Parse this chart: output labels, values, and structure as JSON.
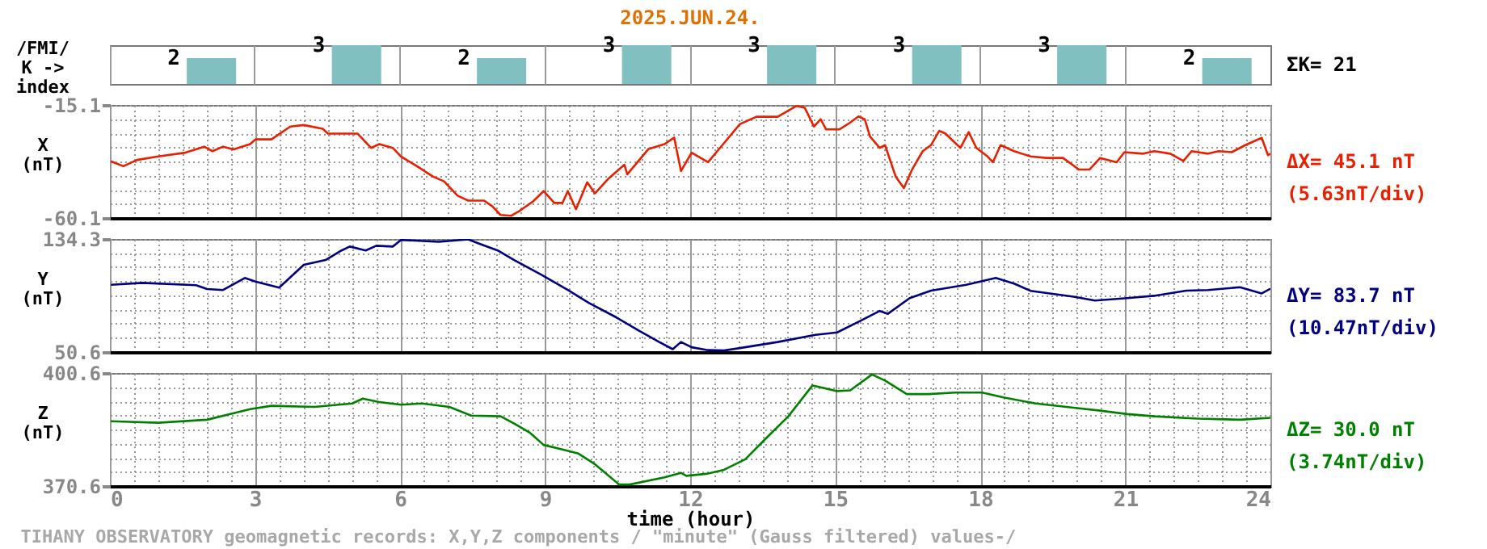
{
  "chart_data": [
    {
      "type": "bar",
      "title": "2025.JUN.24.",
      "ylabel": "/FMI/\nK ->\nindex",
      "categories": [
        null,
        null,
        null,
        null,
        null,
        null,
        null,
        null
      ],
      "values": [
        2,
        3,
        2,
        3,
        3,
        3,
        3,
        2
      ],
      "color": "#80c0c0",
      "data_labels": true,
      "grid": "x",
      "tick_labels": false,
      "annotations": [
        "ΣK= 21"
      ]
    },
    {
      "type": "line",
      "ylabel": "X\n(nT)",
      "xlim": [
        0,
        24
      ],
      "ylim": [
        -60.1,
        -15.1
      ],
      "yticks": [
        -15.1,
        {
          "value": -20.74,
          "label": null
        },
        {
          "value": -26.38,
          "label": null
        },
        {
          "value": -32.01,
          "label": null
        },
        {
          "value": -37.65,
          "label": null
        },
        {
          "value": -43.29,
          "label": null
        },
        {
          "value": -48.92,
          "label": null
        },
        {
          "value": -54.56,
          "label": null
        },
        -60.1
      ],
      "xticks": [
        0,
        {
          "value": 0.5,
          "label": null
        },
        {
          "value": 1,
          "label": null
        },
        {
          "value": 1.5,
          "label": null
        },
        {
          "value": 2,
          "label": null
        },
        {
          "value": 2.5,
          "label": null
        },
        3,
        {
          "value": 3.5,
          "label": null
        },
        {
          "value": 4,
          "label": null
        },
        {
          "value": 4.5,
          "label": null
        },
        {
          "value": 5,
          "label": null
        },
        {
          "value": 5.5,
          "label": null
        },
        6,
        {
          "value": 6.5,
          "label": null
        },
        {
          "value": 7,
          "label": null
        },
        {
          "value": 7.5,
          "label": null
        },
        {
          "value": 8,
          "label": null
        },
        {
          "value": 8.5,
          "label": null
        },
        9,
        {
          "value": 9.5,
          "label": null
        },
        {
          "value": 10,
          "label": null
        },
        {
          "value": 10.5,
          "label": null
        },
        {
          "value": 11,
          "label": null
        },
        {
          "value": 11.5,
          "label": null
        },
        12,
        {
          "value": 12.5,
          "label": null
        },
        {
          "value": 13,
          "label": null
        },
        {
          "value": 13.5,
          "label": null
        },
        {
          "value": 14,
          "label": null
        },
        {
          "value": 14.5,
          "label": null
        },
        15,
        {
          "value": 15.5,
          "label": null
        },
        {
          "value": 16,
          "label": null
        },
        {
          "value": 16.5,
          "label": null
        },
        {
          "value": 17,
          "label": null
        },
        {
          "value": 17.5,
          "label": null
        },
        18,
        {
          "value": 18.5,
          "label": null
        },
        {
          "value": 19,
          "label": null
        },
        {
          "value": 19.5,
          "label": null
        },
        {
          "value": 20,
          "label": null
        },
        {
          "value": 20.5,
          "label": null
        },
        21,
        {
          "value": 21.5,
          "label": null
        },
        {
          "value": 22,
          "label": null
        },
        {
          "value": 22.5,
          "label": null
        },
        {
          "value": 23,
          "label": null
        },
        {
          "value": 23.5,
          "label": null
        },
        24
      ],
      "grid": true,
      "tick_labels": "y",
      "annotations": [
        "ΔX= 45.1 nT",
        "(5.63nT/div)"
      ],
      "series": [
        {
          "color": "#e82000",
          "x": [
            0.02,
            0.28,
            0.56,
            1.0,
            1.56,
            1.95,
            2.12,
            2.34,
            2.56,
            2.9,
            3.01,
            3.34,
            3.73,
            4.01,
            4.4,
            4.51,
            5.12,
            5.4,
            5.57,
            5.85,
            6.02,
            6.35,
            6.68,
            6.91,
            7.19,
            7.41,
            7.74,
            7.91,
            8.08,
            8.3,
            8.47,
            8.75,
            8.97,
            9.19,
            9.36,
            9.47,
            9.64,
            9.87,
            10.03,
            10.3,
            10.64,
            10.7,
            11.14,
            11.47,
            11.67,
            11.81,
            12.03,
            12.37,
            12.7,
            13.03,
            13.37,
            13.81,
            14.2,
            14.37,
            14.56,
            14.7,
            14.81,
            15.09,
            15.28,
            15.48,
            15.61,
            15.72,
            15.92,
            16.03,
            16.25,
            16.42,
            16.59,
            16.81,
            16.98,
            17.15,
            17.28,
            17.59,
            17.76,
            17.92,
            18.15,
            18.26,
            18.42,
            18.7,
            19.04,
            19.37,
            19.71,
            20.04,
            20.26,
            20.48,
            20.82,
            20.98,
            21.37,
            21.6,
            21.93,
            22.2,
            22.37,
            22.71,
            22.93,
            23.2,
            23.48,
            23.82,
            23.95,
            24.0
          ],
          "values": [
            -37.5,
            -39.5,
            -37.0,
            -35.6,
            -34.1,
            -31.7,
            -33.5,
            -31.7,
            -32.8,
            -30.7,
            -28.8,
            -28.8,
            -23.7,
            -23.1,
            -24.6,
            -26.5,
            -26.5,
            -32.2,
            -30.7,
            -32.2,
            -35.6,
            -39.5,
            -43.6,
            -45.5,
            -51.2,
            -53.2,
            -53.2,
            -55.5,
            -58.9,
            -59.2,
            -57.3,
            -53.5,
            -49.4,
            -54.1,
            -54.1,
            -49.4,
            -56.6,
            -45.9,
            -50.3,
            -44.6,
            -38.9,
            -42.7,
            -32.6,
            -30.7,
            -28.1,
            -41.4,
            -34.1,
            -37.9,
            -30.3,
            -22.7,
            -19.8,
            -19.8,
            -15.5,
            -16.2,
            -23.7,
            -20.8,
            -24.8,
            -24.8,
            -22.5,
            -19.7,
            -20.8,
            -27.7,
            -32.2,
            -31.1,
            -43.6,
            -48.2,
            -40.8,
            -33.5,
            -31.1,
            -25.4,
            -26.5,
            -32.2,
            -25.9,
            -32.2,
            -35.6,
            -37.9,
            -31.1,
            -33.5,
            -35.6,
            -36.2,
            -36.2,
            -40.8,
            -40.8,
            -36.2,
            -37.9,
            -33.9,
            -34.5,
            -33.5,
            -34.5,
            -37.4,
            -33.5,
            -34.5,
            -33.5,
            -33.9,
            -31.1,
            -28.2,
            -35.1,
            -34.5
          ]
        }
      ]
    },
    {
      "type": "line",
      "ylabel": "Y\n(nT)",
      "xlim": [
        0,
        24
      ],
      "ylim": [
        50.6,
        134.3
      ],
      "yticks": [
        134.3,
        {
          "value": 123.84,
          "label": null
        },
        {
          "value": 113.38,
          "label": null
        },
        {
          "value": 102.91,
          "label": null
        },
        {
          "value": 92.45,
          "label": null
        },
        {
          "value": 81.99,
          "label": null
        },
        {
          "value": 71.53,
          "label": null
        },
        {
          "value": 61.06,
          "label": null
        },
        50.6
      ],
      "xticks": [
        0,
        {
          "value": 0.5,
          "label": null
        },
        {
          "value": 1,
          "label": null
        },
        {
          "value": 1.5,
          "label": null
        },
        {
          "value": 2,
          "label": null
        },
        {
          "value": 2.5,
          "label": null
        },
        3,
        {
          "value": 3.5,
          "label": null
        },
        {
          "value": 4,
          "label": null
        },
        {
          "value": 4.5,
          "label": null
        },
        {
          "value": 5,
          "label": null
        },
        {
          "value": 5.5,
          "label": null
        },
        6,
        {
          "value": 6.5,
          "label": null
        },
        {
          "value": 7,
          "label": null
        },
        {
          "value": 7.5,
          "label": null
        },
        {
          "value": 8,
          "label": null
        },
        {
          "value": 8.5,
          "label": null
        },
        9,
        {
          "value": 9.5,
          "label": null
        },
        {
          "value": 10,
          "label": null
        },
        {
          "value": 10.5,
          "label": null
        },
        {
          "value": 11,
          "label": null
        },
        {
          "value": 11.5,
          "label": null
        },
        12,
        {
          "value": 12.5,
          "label": null
        },
        {
          "value": 13,
          "label": null
        },
        {
          "value": 13.5,
          "label": null
        },
        {
          "value": 14,
          "label": null
        },
        {
          "value": 14.5,
          "label": null
        },
        15,
        {
          "value": 15.5,
          "label": null
        },
        {
          "value": 16,
          "label": null
        },
        {
          "value": 16.5,
          "label": null
        },
        {
          "value": 17,
          "label": null
        },
        {
          "value": 17.5,
          "label": null
        },
        18,
        {
          "value": 18.5,
          "label": null
        },
        {
          "value": 19,
          "label": null
        },
        {
          "value": 19.5,
          "label": null
        },
        {
          "value": 20,
          "label": null
        },
        {
          "value": 20.5,
          "label": null
        },
        21,
        {
          "value": 21.5,
          "label": null
        },
        {
          "value": 22,
          "label": null
        },
        {
          "value": 22.5,
          "label": null
        },
        {
          "value": 23,
          "label": null
        },
        {
          "value": 23.5,
          "label": null
        },
        24
      ],
      "grid": true,
      "tick_labels": "y",
      "annotations": [
        "ΔY= 83.7 nT",
        "(10.47nT/div)"
      ],
      "series": [
        {
          "color": "#000080",
          "x": [
            0.02,
            0.67,
            1.78,
            2.01,
            2.34,
            2.79,
            3.01,
            3.5,
            4.01,
            4.46,
            4.79,
            4.96,
            5.29,
            5.51,
            5.85,
            6.02,
            6.8,
            7.41,
            7.69,
            8.02,
            8.36,
            8.91,
            9.47,
            9.91,
            10.47,
            10.92,
            11.36,
            11.64,
            11.81,
            12.03,
            12.37,
            12.7,
            13.03,
            13.81,
            14.59,
            15.04,
            15.48,
            15.92,
            16.09,
            16.54,
            16.98,
            17.71,
            18.32,
            18.71,
            19.04,
            19.93,
            20.37,
            21.04,
            21.59,
            22.26,
            22.71,
            23.37,
            23.82,
            24.0
          ],
          "values": [
            100.4,
            101.8,
            100.1,
            97.2,
            96.5,
            105.4,
            102.8,
            98.3,
            115.2,
            118.7,
            125.8,
            128.7,
            125.8,
            129.3,
            128.7,
            133.6,
            132.2,
            134.0,
            130.1,
            125.8,
            118.7,
            108.1,
            96.5,
            86.9,
            76.3,
            66.8,
            58.0,
            52.7,
            58.0,
            54.1,
            52.0,
            51.7,
            53.5,
            58.0,
            63.3,
            65.1,
            72.9,
            81.0,
            78.9,
            90.5,
            96.0,
            100.4,
            105.4,
            101.1,
            95.9,
            91.6,
            88.7,
            90.5,
            92.2,
            96.0,
            96.5,
            98.6,
            94.0,
            97.5
          ]
        }
      ]
    },
    {
      "type": "line",
      "ylabel": "Z\n(nT)",
      "xlabel": "time (hour)",
      "xlim": [
        0,
        24
      ],
      "ylim": [
        370.6,
        400.6
      ],
      "yticks": [
        400.6,
        {
          "value": 396.85,
          "label": null
        },
        {
          "value": 393.1,
          "label": null
        },
        {
          "value": 389.35,
          "label": null
        },
        {
          "value": 385.6,
          "label": null
        },
        {
          "value": 381.85,
          "label": null
        },
        {
          "value": 378.1,
          "label": null
        },
        {
          "value": 374.35,
          "label": null
        },
        370.6
      ],
      "xticks": [
        0,
        {
          "value": 0.5,
          "label": null
        },
        {
          "value": 1,
          "label": null
        },
        {
          "value": 1.5,
          "label": null
        },
        {
          "value": 2,
          "label": null
        },
        {
          "value": 2.5,
          "label": null
        },
        3,
        {
          "value": 3.5,
          "label": null
        },
        {
          "value": 4,
          "label": null
        },
        {
          "value": 4.5,
          "label": null
        },
        {
          "value": 5,
          "label": null
        },
        {
          "value": 5.5,
          "label": null
        },
        6,
        {
          "value": 6.5,
          "label": null
        },
        {
          "value": 7,
          "label": null
        },
        {
          "value": 7.5,
          "label": null
        },
        {
          "value": 8,
          "label": null
        },
        {
          "value": 8.5,
          "label": null
        },
        9,
        {
          "value": 9.5,
          "label": null
        },
        {
          "value": 10,
          "label": null
        },
        {
          "value": 10.5,
          "label": null
        },
        {
          "value": 11,
          "label": null
        },
        {
          "value": 11.5,
          "label": null
        },
        12,
        {
          "value": 12.5,
          "label": null
        },
        {
          "value": 13,
          "label": null
        },
        {
          "value": 13.5,
          "label": null
        },
        {
          "value": 14,
          "label": null
        },
        {
          "value": 14.5,
          "label": null
        },
        15,
        {
          "value": 15.5,
          "label": null
        },
        {
          "value": 16,
          "label": null
        },
        {
          "value": 16.5,
          "label": null
        },
        {
          "value": 17,
          "label": null
        },
        {
          "value": 17.5,
          "label": null
        },
        18,
        {
          "value": 18.5,
          "label": null
        },
        {
          "value": 19,
          "label": null
        },
        {
          "value": 19.5,
          "label": null
        },
        {
          "value": 20,
          "label": null
        },
        {
          "value": 20.5,
          "label": null
        },
        21,
        {
          "value": 21.5,
          "label": null
        },
        {
          "value": 22,
          "label": null
        },
        {
          "value": 22.5,
          "label": null
        },
        {
          "value": 23,
          "label": null
        },
        {
          "value": 23.5,
          "label": null
        },
        24
      ],
      "grid": true,
      "annotations": [
        "ΔZ= 30.0 nT",
        "(3.74nT/div)",
        "TIHANY OBSERVATORY   geomagnetic records:  X,Y,Z  components   / \"minute\" (Gauss filtered) values-/"
      ],
      "series": [
        {
          "color": "#008000",
          "x": [
            0.02,
            1.0,
            2.01,
            2.9,
            3.34,
            4.23,
            5.01,
            5.23,
            5.57,
            6.02,
            6.46,
            7.02,
            7.47,
            8.08,
            8.36,
            8.69,
            8.97,
            9.36,
            9.69,
            10.03,
            10.53,
            10.75,
            11.47,
            11.81,
            11.92,
            12.37,
            12.7,
            13.14,
            13.58,
            14.03,
            14.53,
            15.04,
            15.31,
            15.76,
            16.03,
            16.48,
            16.93,
            17.48,
            18.04,
            18.48,
            19.15,
            19.93,
            20.48,
            21.04,
            21.6,
            22.49,
            23.37,
            24.0
          ],
          "values": [
            387.8,
            387.4,
            388.2,
            391.0,
            391.9,
            391.6,
            392.5,
            393.8,
            392.9,
            392.2,
            392.5,
            391.6,
            389.3,
            389.1,
            387.2,
            384.7,
            381.5,
            380.3,
            379.2,
            376.4,
            371.0,
            371.0,
            372.9,
            374.1,
            373.3,
            373.9,
            374.9,
            377.7,
            383.4,
            389.1,
            397.3,
            395.8,
            396.0,
            400.2,
            398.6,
            395.0,
            395.0,
            395.4,
            395.4,
            394.1,
            392.5,
            391.4,
            390.6,
            389.7,
            389.1,
            388.5,
            388.2,
            388.7
          ]
        }
      ]
    }
  ]
}
